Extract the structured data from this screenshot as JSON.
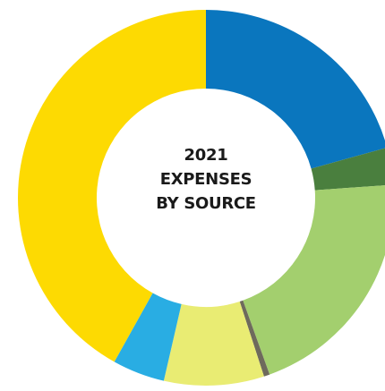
{
  "chart_data": {
    "type": "pie",
    "title_lines": [
      "2021",
      "EXPENSES",
      "BY SOURCE"
    ],
    "categories": [
      "",
      "",
      "",
      "",
      "",
      "",
      ""
    ],
    "values": [
      20.7,
      3.2,
      20.6,
      0.5,
      8.6,
      4.5,
      41.9
    ],
    "colors": [
      "#0A76BE",
      "#4A7F3E",
      "#A3CF6E",
      "#6E6A5C",
      "#E9EC73",
      "#29ADE3",
      "#FDDA02"
    ],
    "start_angle_deg": 0,
    "direction": "clockwise",
    "legend": "none"
  }
}
